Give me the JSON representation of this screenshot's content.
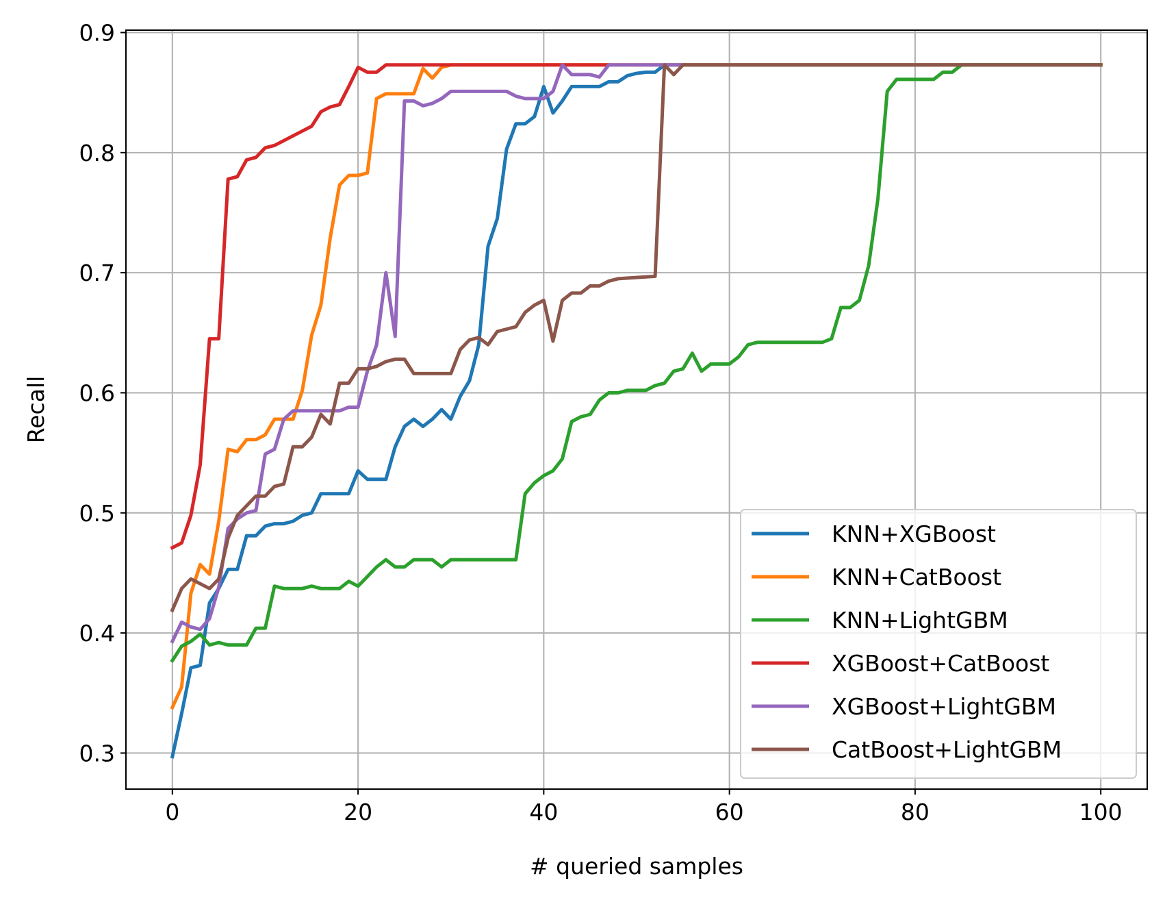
{
  "chart_data": {
    "type": "line",
    "title": "",
    "xlabel": "# queried samples",
    "ylabel": "Recall",
    "xlim": [
      -5,
      105
    ],
    "ylim": [
      0.27,
      0.902
    ],
    "x_ticks": [
      0,
      20,
      40,
      60,
      80,
      100
    ],
    "y_ticks": [
      0.3,
      0.4,
      0.5,
      0.6,
      0.7,
      0.8,
      0.9
    ],
    "x_tick_labels": [
      "0",
      "20",
      "40",
      "60",
      "80",
      "100"
    ],
    "y_tick_labels": [
      "0.3",
      "0.4",
      "0.5",
      "0.6",
      "0.7",
      "0.8",
      "0.9"
    ],
    "grid": true,
    "legend_position": "bottom-right",
    "series": [
      {
        "name": "KNN+XGBoost",
        "color": "#1f77b4",
        "points": [
          [
            0,
            0.297
          ],
          [
            1,
            0.333
          ],
          [
            2,
            0.371
          ],
          [
            3,
            0.373
          ],
          [
            4,
            0.425
          ],
          [
            5,
            0.437
          ],
          [
            6,
            0.453
          ],
          [
            7,
            0.453
          ],
          [
            8,
            0.481
          ],
          [
            9,
            0.481
          ],
          [
            10,
            0.489
          ],
          [
            11,
            0.491
          ],
          [
            12,
            0.491
          ],
          [
            13,
            0.493
          ],
          [
            14,
            0.498
          ],
          [
            15,
            0.5
          ],
          [
            16,
            0.516
          ],
          [
            17,
            0.516
          ],
          [
            18,
            0.516
          ],
          [
            19,
            0.516
          ],
          [
            20,
            0.535
          ],
          [
            21,
            0.528
          ],
          [
            22,
            0.528
          ],
          [
            23,
            0.528
          ],
          [
            24,
            0.555
          ],
          [
            25,
            0.572
          ],
          [
            26,
            0.578
          ],
          [
            27,
            0.572
          ],
          [
            28,
            0.578
          ],
          [
            29,
            0.586
          ],
          [
            30,
            0.578
          ],
          [
            31,
            0.597
          ],
          [
            32,
            0.61
          ],
          [
            33,
            0.64
          ],
          [
            34,
            0.722
          ],
          [
            35,
            0.745
          ],
          [
            36,
            0.803
          ],
          [
            37,
            0.824
          ],
          [
            38,
            0.824
          ],
          [
            39,
            0.83
          ],
          [
            40,
            0.855
          ],
          [
            41,
            0.833
          ],
          [
            42,
            0.843
          ],
          [
            43,
            0.855
          ],
          [
            44,
            0.855
          ],
          [
            45,
            0.855
          ],
          [
            46,
            0.855
          ],
          [
            47,
            0.859
          ],
          [
            48,
            0.859
          ],
          [
            49,
            0.864
          ],
          [
            50,
            0.866
          ],
          [
            51,
            0.867
          ],
          [
            52,
            0.867
          ],
          [
            53,
            0.873
          ],
          [
            100,
            0.873
          ]
        ]
      },
      {
        "name": "KNN+CatBoost",
        "color": "#ff7f0e",
        "points": [
          [
            0,
            0.338
          ],
          [
            1,
            0.355
          ],
          [
            2,
            0.433
          ],
          [
            3,
            0.457
          ],
          [
            4,
            0.449
          ],
          [
            5,
            0.493
          ],
          [
            6,
            0.553
          ],
          [
            7,
            0.551
          ],
          [
            8,
            0.561
          ],
          [
            9,
            0.561
          ],
          [
            10,
            0.565
          ],
          [
            11,
            0.578
          ],
          [
            12,
            0.578
          ],
          [
            13,
            0.578
          ],
          [
            14,
            0.602
          ],
          [
            15,
            0.648
          ],
          [
            16,
            0.673
          ],
          [
            17,
            0.729
          ],
          [
            18,
            0.773
          ],
          [
            19,
            0.781
          ],
          [
            20,
            0.781
          ],
          [
            21,
            0.783
          ],
          [
            22,
            0.845
          ],
          [
            23,
            0.849
          ],
          [
            24,
            0.849
          ],
          [
            25,
            0.849
          ],
          [
            26,
            0.849
          ],
          [
            27,
            0.87
          ],
          [
            28,
            0.862
          ],
          [
            29,
            0.871
          ],
          [
            30,
            0.873
          ],
          [
            100,
            0.873
          ]
        ]
      },
      {
        "name": "KNN+LightGBM",
        "color": "#2ca02c",
        "points": [
          [
            0,
            0.377
          ],
          [
            1,
            0.389
          ],
          [
            2,
            0.393
          ],
          [
            3,
            0.399
          ],
          [
            4,
            0.39
          ],
          [
            5,
            0.392
          ],
          [
            6,
            0.39
          ],
          [
            7,
            0.39
          ],
          [
            8,
            0.39
          ],
          [
            9,
            0.404
          ],
          [
            10,
            0.404
          ],
          [
            11,
            0.439
          ],
          [
            12,
            0.437
          ],
          [
            13,
            0.437
          ],
          [
            14,
            0.437
          ],
          [
            15,
            0.439
          ],
          [
            16,
            0.437
          ],
          [
            17,
            0.437
          ],
          [
            18,
            0.437
          ],
          [
            19,
            0.443
          ],
          [
            20,
            0.439
          ],
          [
            21,
            0.447
          ],
          [
            22,
            0.455
          ],
          [
            23,
            0.461
          ],
          [
            24,
            0.455
          ],
          [
            25,
            0.455
          ],
          [
            26,
            0.461
          ],
          [
            27,
            0.461
          ],
          [
            28,
            0.461
          ],
          [
            29,
            0.455
          ],
          [
            30,
            0.461
          ],
          [
            37,
            0.461
          ],
          [
            38,
            0.516
          ],
          [
            39,
            0.525
          ],
          [
            40,
            0.531
          ],
          [
            41,
            0.535
          ],
          [
            42,
            0.545
          ],
          [
            43,
            0.576
          ],
          [
            44,
            0.58
          ],
          [
            45,
            0.582
          ],
          [
            46,
            0.594
          ],
          [
            47,
            0.6
          ],
          [
            48,
            0.6
          ],
          [
            49,
            0.602
          ],
          [
            50,
            0.602
          ],
          [
            51,
            0.602
          ],
          [
            52,
            0.606
          ],
          [
            53,
            0.608
          ],
          [
            54,
            0.618
          ],
          [
            55,
            0.62
          ],
          [
            56,
            0.633
          ],
          [
            57,
            0.618
          ],
          [
            58,
            0.624
          ],
          [
            59,
            0.624
          ],
          [
            60,
            0.624
          ],
          [
            61,
            0.63
          ],
          [
            62,
            0.64
          ],
          [
            63,
            0.642
          ],
          [
            70,
            0.642
          ],
          [
            71,
            0.645
          ],
          [
            72,
            0.671
          ],
          [
            73,
            0.671
          ],
          [
            74,
            0.677
          ],
          [
            75,
            0.706
          ],
          [
            76,
            0.762
          ],
          [
            77,
            0.851
          ],
          [
            78,
            0.861
          ],
          [
            79,
            0.861
          ],
          [
            82,
            0.861
          ],
          [
            83,
            0.867
          ],
          [
            84,
            0.867
          ],
          [
            85,
            0.873
          ],
          [
            100,
            0.873
          ]
        ]
      },
      {
        "name": "XGBoost+CatBoost",
        "color": "#d62728",
        "points": [
          [
            0,
            0.471
          ],
          [
            1,
            0.475
          ],
          [
            2,
            0.498
          ],
          [
            3,
            0.54
          ],
          [
            4,
            0.645
          ],
          [
            5,
            0.645
          ],
          [
            6,
            0.778
          ],
          [
            7,
            0.78
          ],
          [
            8,
            0.794
          ],
          [
            9,
            0.796
          ],
          [
            10,
            0.804
          ],
          [
            11,
            0.806
          ],
          [
            12,
            0.81
          ],
          [
            13,
            0.814
          ],
          [
            14,
            0.818
          ],
          [
            15,
            0.822
          ],
          [
            16,
            0.834
          ],
          [
            17,
            0.838
          ],
          [
            18,
            0.84
          ],
          [
            19,
            0.855
          ],
          [
            20,
            0.871
          ],
          [
            21,
            0.867
          ],
          [
            22,
            0.867
          ],
          [
            23,
            0.873
          ],
          [
            47,
            0.873
          ]
        ]
      },
      {
        "name": "XGBoost+LightGBM",
        "color": "#9467bd",
        "points": [
          [
            0,
            0.393
          ],
          [
            1,
            0.409
          ],
          [
            2,
            0.405
          ],
          [
            3,
            0.403
          ],
          [
            4,
            0.412
          ],
          [
            5,
            0.438
          ],
          [
            6,
            0.487
          ],
          [
            7,
            0.495
          ],
          [
            8,
            0.5
          ],
          [
            9,
            0.502
          ],
          [
            10,
            0.549
          ],
          [
            11,
            0.553
          ],
          [
            12,
            0.578
          ],
          [
            13,
            0.585
          ],
          [
            14,
            0.585
          ],
          [
            18,
            0.585
          ],
          [
            19,
            0.588
          ],
          [
            20,
            0.588
          ],
          [
            21,
            0.618
          ],
          [
            22,
            0.64
          ],
          [
            23,
            0.7
          ],
          [
            24,
            0.647
          ],
          [
            25,
            0.843
          ],
          [
            26,
            0.843
          ],
          [
            27,
            0.839
          ],
          [
            28,
            0.841
          ],
          [
            29,
            0.845
          ],
          [
            30,
            0.851
          ],
          [
            31,
            0.851
          ],
          [
            36,
            0.851
          ],
          [
            37,
            0.847
          ],
          [
            38,
            0.845
          ],
          [
            39,
            0.845
          ],
          [
            40,
            0.845
          ],
          [
            41,
            0.851
          ],
          [
            42,
            0.873
          ],
          [
            43,
            0.865
          ],
          [
            44,
            0.865
          ],
          [
            45,
            0.865
          ],
          [
            46,
            0.863
          ],
          [
            47,
            0.873
          ],
          [
            55,
            0.873
          ]
        ]
      },
      {
        "name": "CatBoost+LightGBM",
        "color": "#8c564b",
        "points": [
          [
            0,
            0.419
          ],
          [
            1,
            0.437
          ],
          [
            2,
            0.445
          ],
          [
            3,
            0.441
          ],
          [
            4,
            0.437
          ],
          [
            5,
            0.445
          ],
          [
            6,
            0.479
          ],
          [
            7,
            0.498
          ],
          [
            8,
            0.506
          ],
          [
            9,
            0.514
          ],
          [
            10,
            0.514
          ],
          [
            11,
            0.522
          ],
          [
            12,
            0.524
          ],
          [
            13,
            0.555
          ],
          [
            14,
            0.555
          ],
          [
            15,
            0.563
          ],
          [
            16,
            0.582
          ],
          [
            17,
            0.574
          ],
          [
            18,
            0.608
          ],
          [
            19,
            0.608
          ],
          [
            20,
            0.62
          ],
          [
            21,
            0.62
          ],
          [
            22,
            0.622
          ],
          [
            23,
            0.626
          ],
          [
            24,
            0.628
          ],
          [
            25,
            0.628
          ],
          [
            26,
            0.616
          ],
          [
            27,
            0.616
          ],
          [
            30,
            0.616
          ],
          [
            31,
            0.636
          ],
          [
            32,
            0.644
          ],
          [
            33,
            0.646
          ],
          [
            34,
            0.64
          ],
          [
            35,
            0.651
          ],
          [
            36,
            0.653
          ],
          [
            37,
            0.655
          ],
          [
            38,
            0.667
          ],
          [
            39,
            0.673
          ],
          [
            40,
            0.677
          ],
          [
            41,
            0.643
          ],
          [
            42,
            0.677
          ],
          [
            43,
            0.683
          ],
          [
            44,
            0.683
          ],
          [
            45,
            0.689
          ],
          [
            46,
            0.689
          ],
          [
            47,
            0.693
          ],
          [
            48,
            0.695
          ],
          [
            52,
            0.697
          ],
          [
            53,
            0.873
          ],
          [
            54,
            0.865
          ],
          [
            55,
            0.873
          ],
          [
            100,
            0.873
          ]
        ]
      }
    ]
  }
}
